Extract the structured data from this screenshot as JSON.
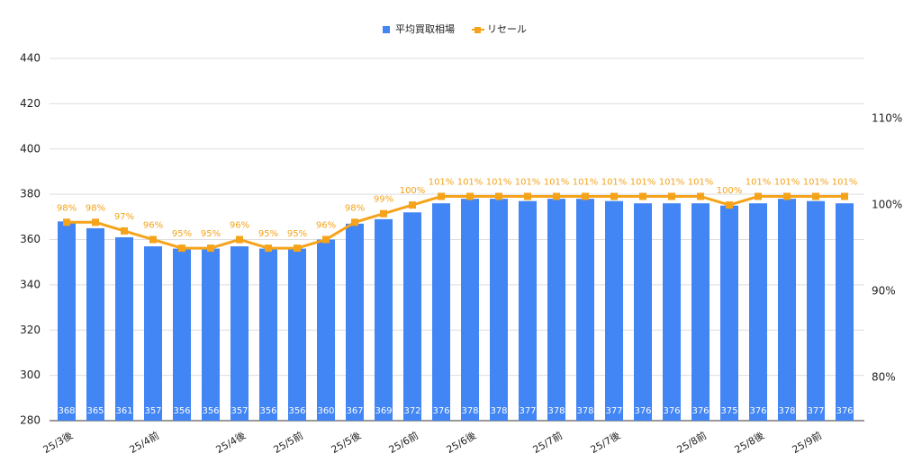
{
  "chart_data": {
    "type": "bar_line",
    "categories": [
      "25/3後",
      null,
      null,
      "25/4前",
      null,
      null,
      "25/4後",
      null,
      "25/5前",
      null,
      "25/5後",
      null,
      "25/6前",
      null,
      "25/6後",
      null,
      null,
      "25/7前",
      null,
      "25/7後",
      null,
      null,
      "25/8前",
      null,
      "25/8後",
      null,
      "25/9前",
      null
    ],
    "series": [
      {
        "name": "平均買取相場",
        "color": "#4285f4",
        "type": "bar",
        "values": [
          368,
          365,
          361,
          357,
          356,
          356,
          357,
          356,
          356,
          360,
          367,
          369,
          372,
          376,
          378,
          378,
          377,
          378,
          378,
          377,
          376,
          376,
          376,
          375,
          376,
          378,
          377,
          376
        ]
      },
      {
        "name": "リセール",
        "color": "#f5a31a",
        "type": "line",
        "axis": "y2",
        "values": [
          98,
          98,
          97,
          96,
          95,
          95,
          96,
          95,
          95,
          96,
          98,
          99,
          100,
          101,
          101,
          101,
          101,
          101,
          101,
          101,
          101,
          101,
          101,
          100,
          101,
          101,
          101,
          101
        ],
        "value_labels": [
          "98%",
          "98%",
          "97%",
          "96%",
          "95%",
          "95%",
          "96%",
          "95%",
          "95%",
          "96%",
          "98%",
          "99%",
          "100%",
          "101%",
          "101%",
          "101%",
          "101%",
          "101%",
          "101%",
          "101%",
          "101%",
          "101%",
          "101%",
          "100%",
          "101%",
          "101%",
          "101%",
          "101%"
        ]
      }
    ],
    "ylim": [
      280,
      440
    ],
    "yticks": [
      280,
      300,
      320,
      340,
      360,
      380,
      400,
      420,
      440
    ],
    "y2lim": [
      75,
      117
    ],
    "y2ticks": [
      {
        "value": 80,
        "label": "80%"
      },
      {
        "value": 90,
        "label": "90%"
      },
      {
        "value": 100,
        "label": "100%"
      },
      {
        "value": 110,
        "label": "110%"
      }
    ],
    "grid": true,
    "legend": "top"
  }
}
